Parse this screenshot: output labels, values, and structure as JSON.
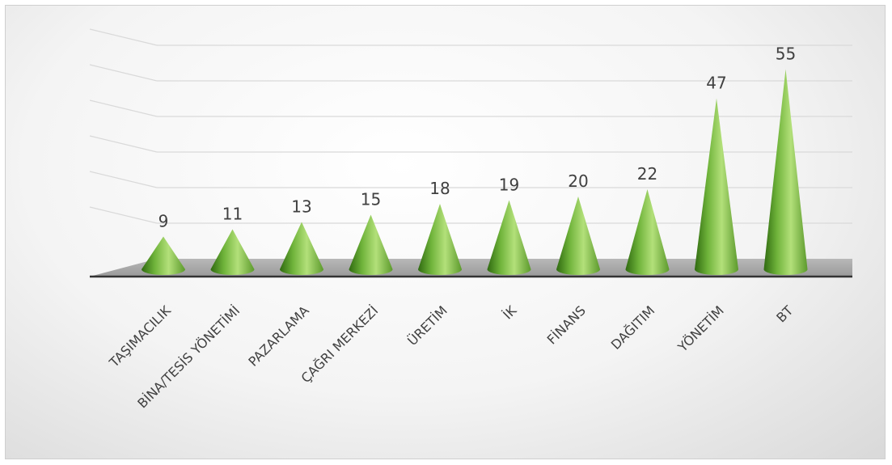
{
  "chart_data": {
    "type": "bar",
    "style": "3d-cone",
    "categories": [
      "TAŞIMACILIK",
      "BİNA/TESİS YÖNETİMİ",
      "PAZARLAMA",
      "ÇAĞRI MERKEZİ",
      "ÜRETİM",
      "İK",
      "FİNANS",
      "DAĞITIM",
      "YÖNETİM",
      "BT"
    ],
    "values": [
      9,
      11,
      13,
      15,
      18,
      19,
      20,
      22,
      47,
      55
    ],
    "title": "",
    "xlabel": "",
    "ylabel": "",
    "ylim": [
      0,
      60
    ],
    "grid": true,
    "legend": "none",
    "colors": {
      "cone_light": "#a9dd6e",
      "cone_mid": "#6fb33a",
      "cone_dark": "#2f6a10",
      "floor": "#a6a6a6",
      "gridline": "#d9d9d9",
      "axis": "#333333",
      "label": "#404040"
    }
  }
}
